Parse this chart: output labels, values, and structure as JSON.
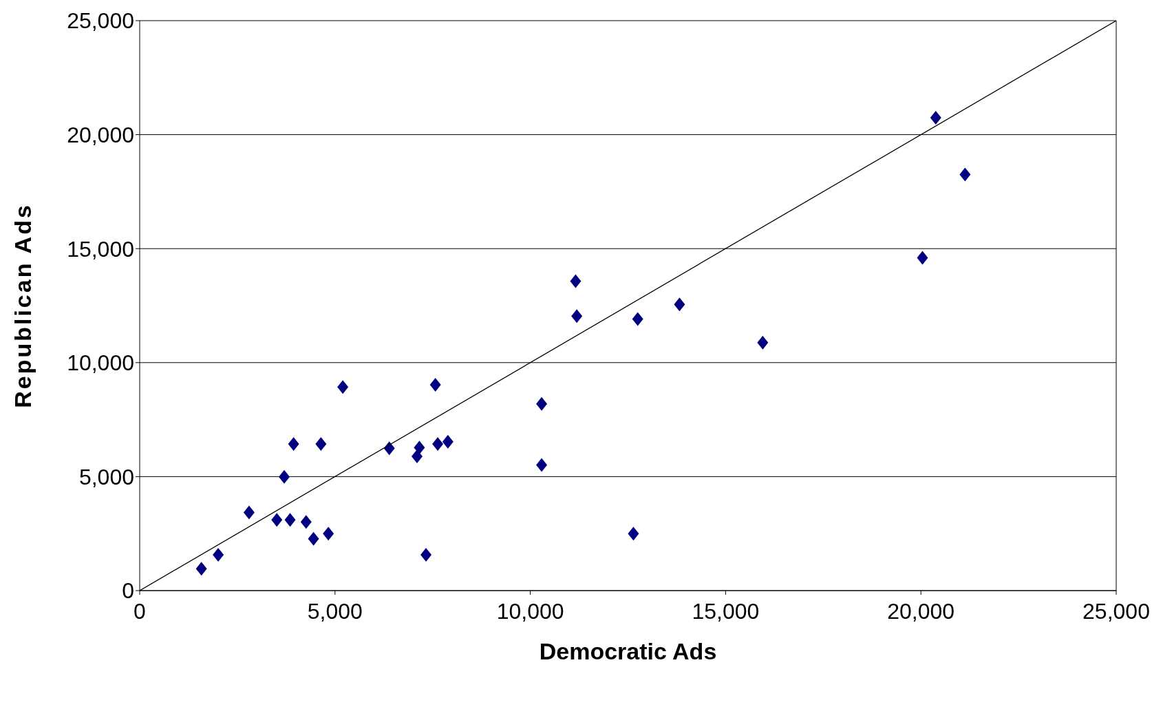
{
  "chart_data": {
    "type": "scatter",
    "xlabel": "Democratic Ads",
    "ylabel": "Republican Ads",
    "xlim": [
      0,
      25000
    ],
    "ylim": [
      0,
      25000
    ],
    "xticks": [
      {
        "value": 0,
        "label": "0"
      },
      {
        "value": 5000,
        "label": "5,000"
      },
      {
        "value": 10000,
        "label": "10,000"
      },
      {
        "value": 15000,
        "label": "15,000"
      },
      {
        "value": 20000,
        "label": "20,000"
      },
      {
        "value": 25000,
        "label": "25,000"
      }
    ],
    "yticks": [
      {
        "value": 0,
        "label": "0"
      },
      {
        "value": 5000,
        "label": "5,000"
      },
      {
        "value": 10000,
        "label": "10,000"
      },
      {
        "value": 15000,
        "label": "15,000"
      },
      {
        "value": 20000,
        "label": "20,000"
      },
      {
        "value": 25000,
        "label": "25,000"
      }
    ],
    "grid": "y",
    "series": [
      {
        "color": "#000080",
        "marker": "diamond",
        "x": [
          1580,
          2010,
          2800,
          3510,
          3850,
          3700,
          3940,
          4260,
          4450,
          4640,
          4830,
          5200,
          6390,
          7100,
          7160,
          7330,
          7570,
          7630,
          7890,
          10290,
          10290,
          11160,
          11190,
          12640,
          12750,
          13820,
          15950,
          20040,
          20380,
          21130
        ],
        "values": [
          960,
          1570,
          3430,
          3100,
          3100,
          4990,
          6430,
          3010,
          2270,
          6430,
          2500,
          8930,
          6240,
          5890,
          6270,
          1570,
          9030,
          6430,
          6530,
          8190,
          5510,
          13570,
          12040,
          2500,
          11910,
          12550,
          10880,
          14600,
          20740,
          18250
        ]
      },
      {
        "type": "line",
        "marker": "none",
        "color": "#000000",
        "x": [
          0,
          25000
        ],
        "values": [
          0,
          25000
        ]
      }
    ]
  }
}
